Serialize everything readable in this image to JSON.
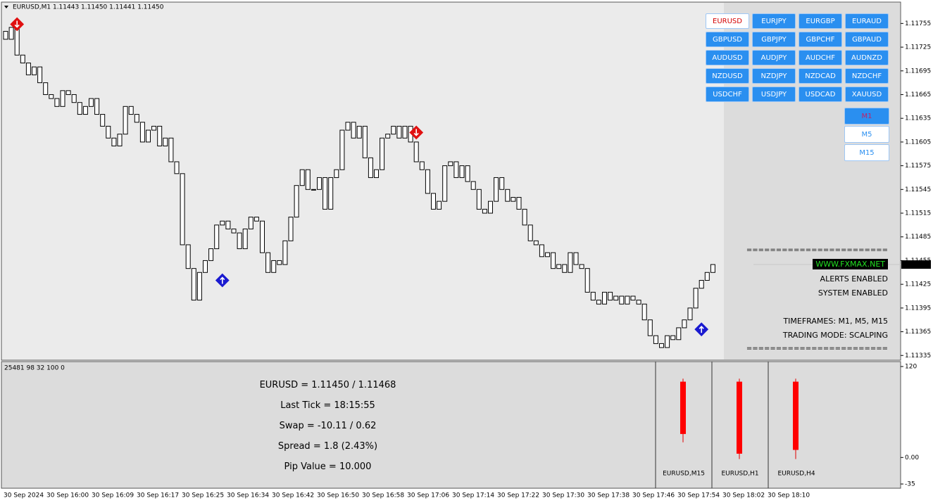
{
  "header": "EURUSD,M1  1.11443 1.11450 1.11441 1.11450",
  "chart_data": {
    "type": "candlestick",
    "open": [
      1.11745,
      1.11735,
      1.1175,
      1.11715,
      1.11705,
      1.1169,
      1.117,
      1.1168,
      1.11665,
      1.1166,
      1.1165,
      1.1167,
      1.11665,
      1.11655,
      1.1164,
      1.1165,
      1.1166,
      1.1164,
      1.11625,
      1.1161,
      1.116,
      1.11615,
      1.1165,
      1.1164,
      1.1163,
      1.11605,
      1.1162,
      1.11625,
      1.116,
      1.1161,
      1.1158,
      1.11565,
      1.11475,
      1.11445,
      1.11405,
      1.1144,
      1.11455,
      1.1147,
      1.115,
      1.11505,
      1.11495,
      1.1149,
      1.1147,
      1.11495,
      1.1151,
      1.11505,
      1.11465,
      1.1144,
      1.11455,
      1.1145,
      1.1148,
      1.1151,
      1.1155,
      1.1157,
      1.11545,
      1.11545,
      1.1156,
      1.1152,
      1.1156,
      1.1157,
      1.1162,
      1.1163,
      1.1161,
      1.11625,
      1.11585,
      1.1156,
      1.1157,
      1.1161,
      1.11615,
      1.11625,
      1.1161,
      1.11625,
      1.11605,
      1.1158,
      1.1157,
      1.1154,
      1.1152,
      1.1153,
      1.11575,
      1.1158,
      1.1156,
      1.11575,
      1.11555,
      1.11545,
      1.1152,
      1.11515,
      1.1153,
      1.1156,
      1.11545,
      1.1153,
      1.11535,
      1.1152,
      1.115,
      1.1148,
      1.11475,
      1.1146,
      1.11465,
      1.11445,
      1.1145,
      1.1144,
      1.11465,
      1.1145,
      1.11445,
      1.11415,
      1.11405,
      1.114,
      1.11415,
      1.11405,
      1.1141,
      1.114,
      1.1141,
      1.11405,
      1.114,
      1.1138,
      1.1136,
      1.1135,
      1.11345,
      1.1136,
      1.11355,
      1.1137,
      1.1138,
      1.11395,
      1.1142,
      1.1143,
      1.1144
    ],
    "close": [
      1.11735,
      1.1175,
      1.11715,
      1.11705,
      1.1169,
      1.117,
      1.1168,
      1.11665,
      1.1166,
      1.1165,
      1.1167,
      1.11665,
      1.11655,
      1.1164,
      1.1165,
      1.1166,
      1.1164,
      1.11625,
      1.1161,
      1.116,
      1.11615,
      1.1165,
      1.1164,
      1.1163,
      1.11605,
      1.1162,
      1.11625,
      1.116,
      1.1161,
      1.1158,
      1.11565,
      1.11475,
      1.11445,
      1.11405,
      1.1144,
      1.11455,
      1.1147,
      1.115,
      1.11505,
      1.11495,
      1.1149,
      1.1147,
      1.11495,
      1.1151,
      1.11505,
      1.11465,
      1.1144,
      1.11455,
      1.1145,
      1.1148,
      1.1151,
      1.1155,
      1.1157,
      1.11545,
      1.11545,
      1.1156,
      1.1152,
      1.1156,
      1.1157,
      1.1162,
      1.1163,
      1.1161,
      1.11625,
      1.11585,
      1.1156,
      1.1157,
      1.1161,
      1.11615,
      1.11625,
      1.1161,
      1.11625,
      1.11605,
      1.1158,
      1.1157,
      1.1154,
      1.1152,
      1.1153,
      1.11575,
      1.1158,
      1.1156,
      1.11575,
      1.11555,
      1.11545,
      1.1152,
      1.11515,
      1.1153,
      1.1156,
      1.11545,
      1.1153,
      1.11535,
      1.1152,
      1.115,
      1.1148,
      1.11475,
      1.1146,
      1.11465,
      1.11445,
      1.1145,
      1.1144,
      1.11465,
      1.1145,
      1.11445,
      1.11415,
      1.11405,
      1.114,
      1.11415,
      1.11405,
      1.1141,
      1.114,
      1.1141,
      1.11405,
      1.114,
      1.1138,
      1.1136,
      1.1135,
      1.11345,
      1.1136,
      1.11355,
      1.1137,
      1.1138,
      1.11395,
      1.1142,
      1.1143,
      1.1144,
      1.1145
    ],
    "ylim": [
      1.11329,
      1.11782
    ],
    "yticks": [
      1.11755,
      1.11725,
      1.11695,
      1.11665,
      1.11635,
      1.11605,
      1.11575,
      1.11545,
      1.11515,
      1.11485,
      1.11455,
      1.11425,
      1.11395,
      1.11365,
      1.11335
    ],
    "current_price": {
      "value": 1.1145,
      "label": "1.11450"
    },
    "sell_signals": [
      {
        "bar": 2,
        "price": 1.11754
      },
      {
        "bar": 72,
        "price": 1.11617
      }
    ],
    "buy_signals": [
      {
        "bar": 38,
        "price": 1.1143
      },
      {
        "bar": 122,
        "price": 1.11368
      }
    ],
    "time_labels": [
      "30 Sep 2024",
      "30 Sep 16:00",
      "30 Sep 16:09",
      "30 Sep 16:17",
      "30 Sep 16:25",
      "30 Sep 16:34",
      "30 Sep 16:42",
      "30 Sep 16:50",
      "30 Sep 16:58",
      "30 Sep 17:06",
      "30 Sep 17:14",
      "30 Sep 17:22",
      "30 Sep 17:30",
      "30 Sep 17:38",
      "30 Sep 17:46",
      "30 Sep 17:54",
      "30 Sep 18:02",
      "30 Sep 18:10"
    ]
  },
  "symbols": [
    "EURUSD",
    "EURJPY",
    "EURGBP",
    "EURAUD",
    "GBPUSD",
    "GBPJPY",
    "GBPCHF",
    "GBPAUD",
    "AUDUSD",
    "AUDJPY",
    "AUDCHF",
    "AUDNZD",
    "NZDUSD",
    "NZDJPY",
    "NZDCAD",
    "NZDCHF",
    "USDCHF",
    "USDJPY",
    "USDCAD",
    "XAUUSD"
  ],
  "timeframes": [
    "M1",
    "M5",
    "M15"
  ],
  "info": {
    "separator": "========================",
    "website": "WWW.FXMAX.NET",
    "alerts": "ALERTS ENABLED",
    "system": "SYSTEM ENABLED",
    "timeframes": "TIMEFRAMES: M1, M5, M15",
    "mode": "TRADING MODE: SCALPING"
  },
  "subwindow": {
    "status": "25481 98 32 100 0",
    "lines": [
      "EURUSD = 1.11450 / 1.11468",
      "Last Tick = 18:15:55",
      "Swap = -10.11 / 0.62",
      "Spread = 1.8  (2.43%)",
      "Pip Value = 10.000"
    ],
    "ylim": [
      -35,
      120
    ],
    "yticks": [
      120,
      {
        "value": 0,
        "label": "0.00"
      },
      -35
    ],
    "candles": [
      {
        "label": "EURUSD,M15",
        "high": 104,
        "top": 100,
        "bottom": 31,
        "low": 20
      },
      {
        "label": "EURUSD,H1",
        "high": 104,
        "top": 100,
        "bottom": 5,
        "low": -2
      },
      {
        "label": "EURUSD,H4",
        "high": 104,
        "top": 100,
        "bottom": 10,
        "low": -2
      }
    ]
  }
}
